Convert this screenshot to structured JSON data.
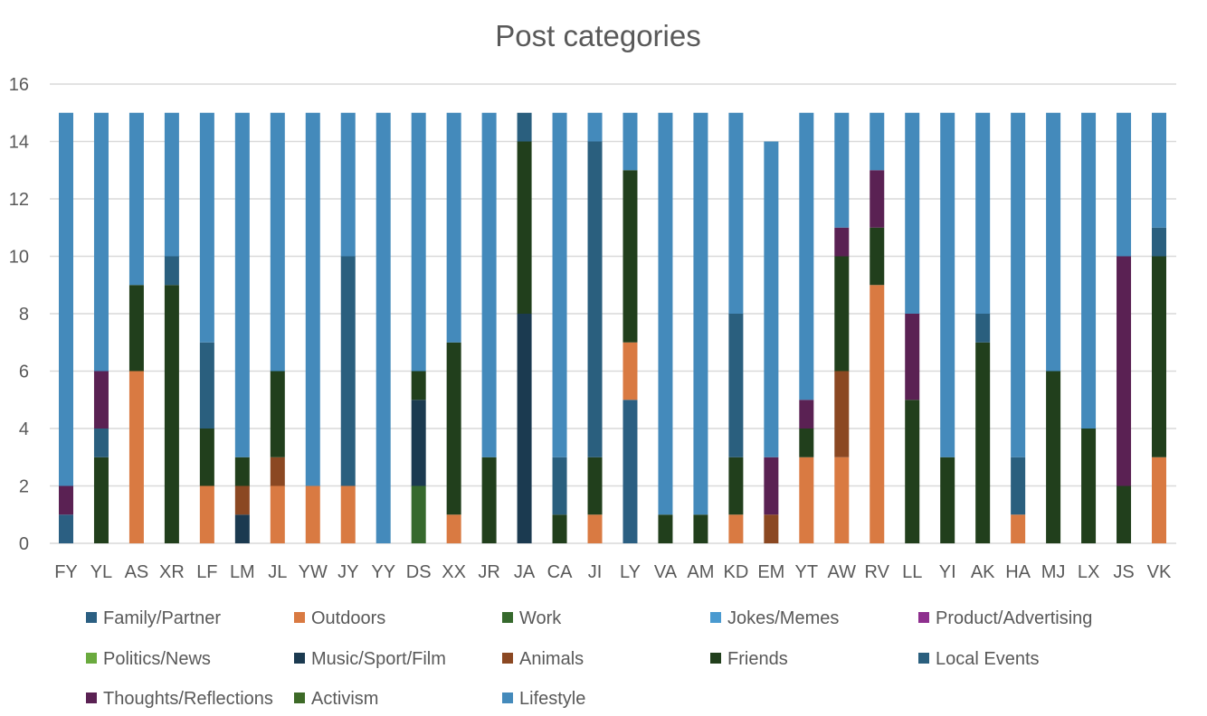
{
  "chart_data": {
    "type": "bar",
    "stacked": true,
    "title": "Post categories",
    "xlabel": "",
    "ylabel": "",
    "ylim": [
      0,
      16
    ],
    "yticks": [
      0,
      2,
      4,
      6,
      8,
      10,
      12,
      14,
      16
    ],
    "grid": true,
    "legend_position": "bottom",
    "categories": [
      "FY",
      "YL",
      "AS",
      "XR",
      "LF",
      "LM",
      "JL",
      "YW",
      "JY",
      "YY",
      "DS",
      "XX",
      "JR",
      "JA",
      "CA",
      "JI",
      "LY",
      "VA",
      "AM",
      "KD",
      "EM",
      "YT",
      "AW",
      "RV",
      "LL",
      "YI",
      "AK",
      "HA",
      "MJ",
      "LX",
      "JS",
      "VK"
    ],
    "series": [
      {
        "name": "Family/Partner",
        "color": "#2b5f82",
        "values": [
          1,
          0,
          0,
          0,
          0,
          0,
          0,
          0,
          0,
          0,
          0,
          0,
          0,
          0,
          0,
          0,
          5,
          0,
          0,
          0,
          0,
          0,
          0,
          0,
          0,
          0,
          0,
          0,
          0,
          0,
          0,
          0
        ]
      },
      {
        "name": "Outdoors",
        "color": "#d97a42",
        "values": [
          0,
          0,
          6,
          0,
          2,
          0,
          2,
          2,
          2,
          0,
          0,
          1,
          0,
          0,
          0,
          1,
          2,
          0,
          0,
          1,
          0,
          3,
          3,
          9,
          0,
          0,
          0,
          1,
          0,
          0,
          0,
          3
        ]
      },
      {
        "name": "Work",
        "color": "#36692d",
        "values": [
          0,
          0,
          0,
          0,
          0,
          0,
          0,
          0,
          0,
          0,
          2,
          0,
          0,
          0,
          0,
          0,
          0,
          0,
          0,
          0,
          0,
          0,
          0,
          0,
          0,
          0,
          0,
          0,
          0,
          0,
          0,
          0
        ]
      },
      {
        "name": "Jokes/Memes",
        "color": "#4a9ad0",
        "values": [
          0,
          0,
          0,
          0,
          0,
          0,
          0,
          0,
          0,
          0,
          0,
          0,
          0,
          0,
          0,
          0,
          0,
          0,
          0,
          0,
          0,
          0,
          0,
          0,
          0,
          0,
          0,
          0,
          0,
          0,
          0,
          0
        ]
      },
      {
        "name": "Product/Advertising",
        "color": "#8e2f8e",
        "values": [
          0,
          0,
          0,
          0,
          0,
          0,
          0,
          0,
          0,
          0,
          0,
          0,
          0,
          0,
          0,
          0,
          0,
          0,
          0,
          0,
          0,
          0,
          0,
          0,
          0,
          0,
          0,
          0,
          0,
          0,
          0,
          0
        ]
      },
      {
        "name": "Politics/News",
        "color": "#6aaa3e",
        "values": [
          0,
          0,
          0,
          0,
          0,
          0,
          0,
          0,
          0,
          0,
          0,
          0,
          0,
          0,
          0,
          0,
          0,
          0,
          0,
          0,
          0,
          0,
          0,
          0,
          0,
          0,
          0,
          0,
          0,
          0,
          0,
          0
        ]
      },
      {
        "name": "Music/Sport/Film",
        "color": "#1b3a50",
        "values": [
          0,
          0,
          0,
          0,
          0,
          1,
          0,
          0,
          0,
          0,
          3,
          0,
          0,
          8,
          0,
          0,
          0,
          0,
          0,
          0,
          0,
          0,
          0,
          0,
          0,
          0,
          0,
          0,
          0,
          0,
          0,
          0
        ]
      },
      {
        "name": "Animals",
        "color": "#8b4822",
        "values": [
          0,
          0,
          0,
          0,
          0,
          1,
          1,
          0,
          0,
          0,
          0,
          0,
          0,
          0,
          0,
          0,
          0,
          0,
          0,
          0,
          1,
          0,
          3,
          0,
          0,
          0,
          0,
          0,
          0,
          0,
          0,
          0
        ]
      },
      {
        "name": "Friends",
        "color": "#213f1c",
        "values": [
          0,
          3,
          3,
          9,
          2,
          1,
          3,
          0,
          0,
          0,
          1,
          6,
          3,
          6,
          1,
          2,
          6,
          1,
          1,
          2,
          0,
          1,
          4,
          2,
          5,
          3,
          7,
          0,
          6,
          4,
          2,
          7
        ]
      },
      {
        "name": "Local Events",
        "color": "#2a5f7e",
        "values": [
          0,
          1,
          0,
          1,
          3,
          0,
          0,
          0,
          8,
          0,
          0,
          0,
          0,
          1,
          2,
          11,
          0,
          0,
          0,
          5,
          0,
          0,
          0,
          0,
          0,
          0,
          1,
          2,
          0,
          0,
          0,
          1
        ]
      },
      {
        "name": "Thoughts/Reflections",
        "color": "#5a2153",
        "values": [
          1,
          2,
          0,
          0,
          0,
          0,
          0,
          0,
          0,
          0,
          0,
          0,
          0,
          0,
          0,
          0,
          0,
          0,
          0,
          0,
          2,
          1,
          1,
          2,
          3,
          0,
          0,
          0,
          0,
          0,
          8,
          0
        ]
      },
      {
        "name": "Activism",
        "color": "#3d6a27",
        "values": [
          0,
          0,
          0,
          0,
          0,
          0,
          0,
          0,
          0,
          0,
          0,
          0,
          0,
          0,
          0,
          0,
          0,
          0,
          0,
          0,
          0,
          0,
          0,
          0,
          0,
          0,
          0,
          0,
          0,
          0,
          0,
          0
        ]
      },
      {
        "name": "Lifestyle",
        "color": "#448abb",
        "values": [
          13,
          9,
          6,
          5,
          8,
          12,
          9,
          13,
          5,
          15,
          9,
          8,
          12,
          0,
          12,
          1,
          2,
          14,
          14,
          7,
          11,
          10,
          4,
          2,
          7,
          12,
          7,
          12,
          9,
          11,
          5,
          4
        ]
      }
    ]
  }
}
